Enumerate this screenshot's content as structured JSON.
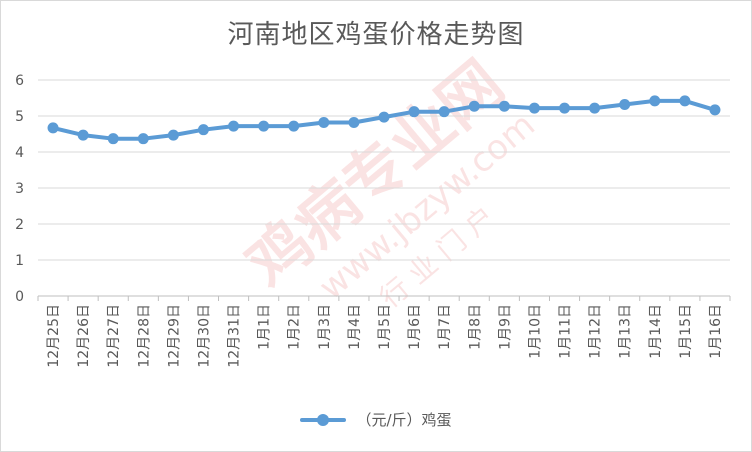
{
  "chart_data": {
    "type": "line",
    "title": "河南地区鸡蛋价格走势图",
    "categories": [
      "12月25日",
      "12月26日",
      "12月27日",
      "12月28日",
      "12月29日",
      "12月30日",
      "12月31日",
      "1月1日",
      "1月2日",
      "1月3日",
      "1月4日",
      "1月5日",
      "1月6日",
      "1月7日",
      "1月8日",
      "1月9日",
      "1月10日",
      "1月11日",
      "1月12日",
      "1月13日",
      "1月14日",
      "1月15日",
      "1月16日"
    ],
    "series": [
      {
        "name": "（元/斤）鸡蛋",
        "values": [
          4.67,
          4.47,
          4.37,
          4.37,
          4.47,
          4.62,
          4.72,
          4.72,
          4.72,
          4.82,
          4.82,
          4.97,
          5.12,
          5.12,
          5.27,
          5.27,
          5.22,
          5.22,
          5.22,
          5.32,
          5.42,
          5.42,
          5.17
        ],
        "color": "#5b9bd5"
      }
    ],
    "ylim": [
      0,
      6
    ],
    "yticks": [
      "0",
      "1",
      "2",
      "3",
      "4",
      "5",
      "6"
    ],
    "grid": true,
    "legend": "bottom"
  },
  "watermark": {
    "main": "鸡病专业网",
    "url": "www.jbzyw.com",
    "slogan": "行 业 门 户"
  }
}
